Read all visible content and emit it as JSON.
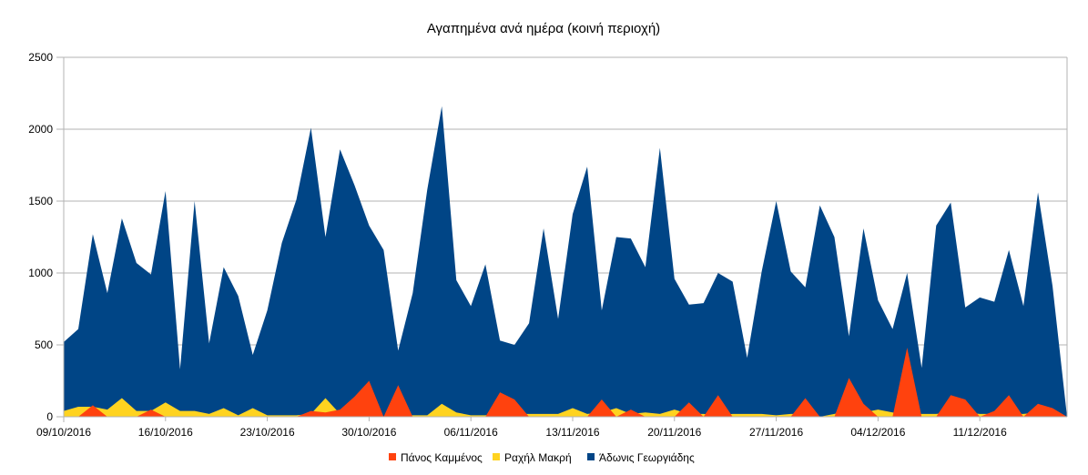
{
  "chart_data": {
    "type": "area",
    "title": "Αγαπημένα ανά ημέρα (κοινή περιοχή)",
    "xlabel": "",
    "ylabel": "",
    "ylim": [
      0,
      2500
    ],
    "yticks": [
      0,
      500,
      1000,
      1500,
      2000,
      2500
    ],
    "x_start": "2016-10-09",
    "x_labels": [
      "09/10/2016",
      "16/10/2016",
      "23/10/2016",
      "30/10/2016",
      "06/11/2016",
      "13/11/2016",
      "20/11/2016",
      "27/11/2016",
      "04/12/2016",
      "11/12/2016"
    ],
    "grid": true,
    "legend_position": "bottom",
    "series": [
      {
        "name": "Άδωνις Γεωργιάδης",
        "color": "#004586",
        "values": [
          520,
          610,
          1270,
          860,
          1380,
          1070,
          990,
          1570,
          330,
          1500,
          510,
          1040,
          840,
          430,
          740,
          1210,
          1510,
          2010,
          1250,
          1860,
          1610,
          1330,
          1160,
          460,
          860,
          1580,
          2160,
          950,
          770,
          1060,
          530,
          500,
          650,
          1310,
          680,
          1410,
          1740,
          740,
          1250,
          1240,
          1040,
          1870,
          960,
          780,
          790,
          1000,
          940,
          410,
          1010,
          1500,
          1010,
          900,
          1470,
          1250,
          560,
          1310,
          810,
          610,
          1000,
          340,
          1330,
          1490,
          760,
          830,
          800,
          1160,
          770,
          1560,
          910,
          0
        ]
      },
      {
        "name": "Ραχήλ Μακρή",
        "color": "#ffd320",
        "values": [
          40,
          70,
          70,
          50,
          130,
          40,
          40,
          100,
          40,
          40,
          20,
          60,
          10,
          60,
          10,
          10,
          10,
          20,
          130,
          20,
          10,
          10,
          0,
          10,
          10,
          10,
          90,
          30,
          10,
          10,
          30,
          20,
          20,
          20,
          20,
          60,
          20,
          30,
          60,
          20,
          30,
          20,
          50,
          20,
          20,
          10,
          20,
          20,
          20,
          10,
          20,
          20,
          0,
          20,
          50,
          30,
          50,
          30,
          10,
          20,
          20,
          30,
          30,
          20,
          20,
          20,
          20,
          30,
          30,
          0
        ]
      },
      {
        "name": "Πάνος Καμμένος",
        "color": "#ff420e",
        "values": [
          0,
          0,
          80,
          0,
          0,
          0,
          50,
          0,
          0,
          0,
          0,
          0,
          0,
          0,
          0,
          0,
          0,
          40,
          30,
          50,
          140,
          250,
          0,
          220,
          0,
          0,
          0,
          0,
          0,
          0,
          170,
          120,
          0,
          0,
          0,
          0,
          0,
          120,
          0,
          50,
          0,
          0,
          0,
          100,
          0,
          150,
          0,
          0,
          0,
          0,
          0,
          130,
          0,
          0,
          270,
          90,
          0,
          0,
          480,
          0,
          0,
          150,
          120,
          0,
          40,
          150,
          0,
          90,
          60,
          0
        ]
      }
    ]
  },
  "legend": {
    "items": [
      {
        "label": "Πάνος Καμμένος",
        "color": "#ff420e"
      },
      {
        "label": "Ραχήλ Μακρή",
        "color": "#ffd320"
      },
      {
        "label": "Άδωνις Γεωργιάδης",
        "color": "#004586"
      }
    ]
  }
}
